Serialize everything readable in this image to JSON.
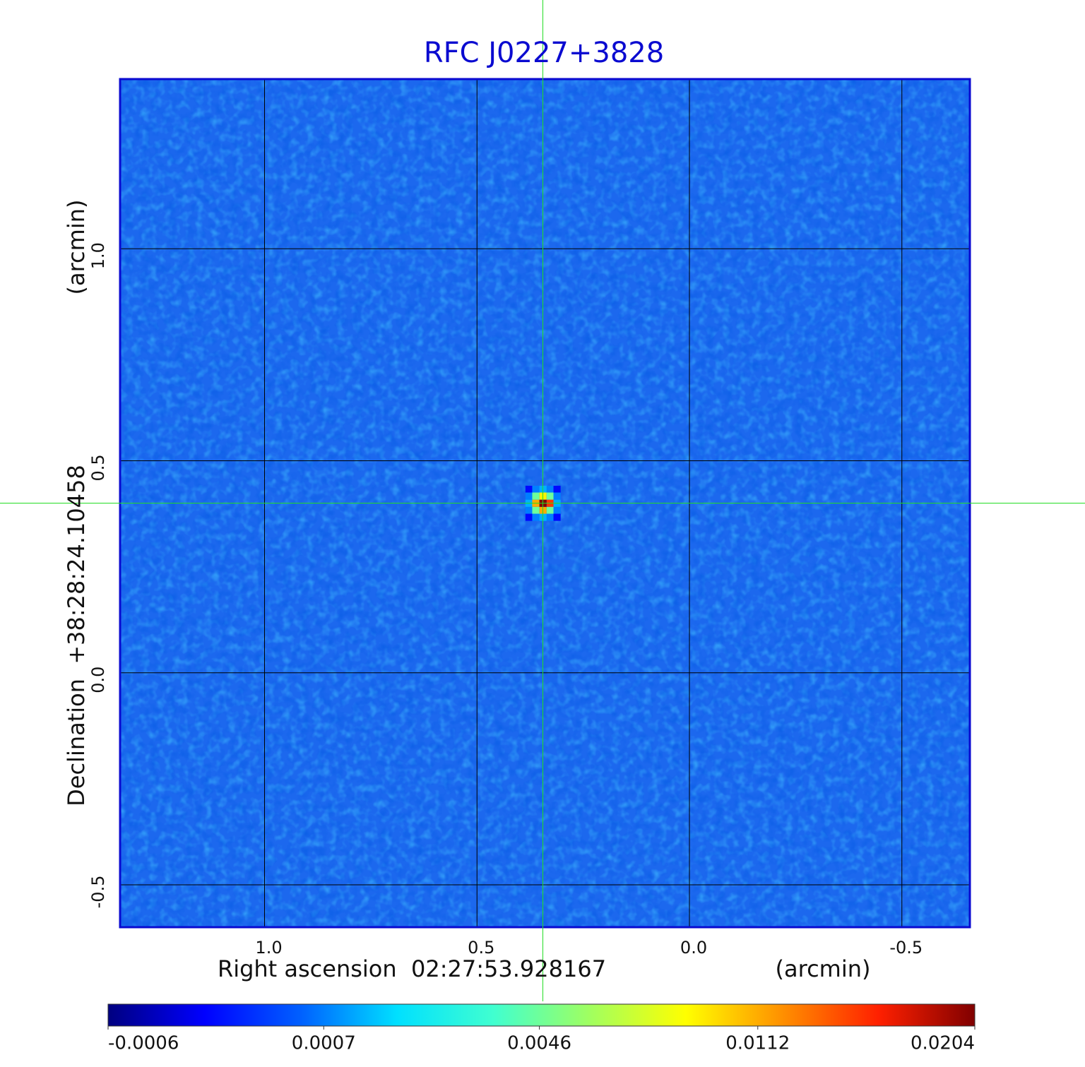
{
  "chart_data": {
    "type": "image",
    "title": "RFC J0227+3828",
    "x_label": "Right ascension  02:27:53.928167",
    "x_unit": "(arcmin)",
    "y_label": "Declination  +38:28:24.10458",
    "y_unit": "(arcmin)",
    "xlim": [
      1.34,
      -0.66
    ],
    "ylim": [
      -0.6,
      1.4
    ],
    "xticks": [
      {
        "value": 1,
        "label": "1.0"
      },
      0.5,
      {
        "value": 0,
        "label": "0.0"
      },
      -0.5
    ],
    "yticks": [
      -0.5,
      {
        "value": 0,
        "label": "0.0"
      },
      0.5,
      {
        "value": 1,
        "label": "1.0"
      }
    ],
    "grid": true,
    "crosshair": {
      "x": 0.345,
      "y": 0.4,
      "color": "#22dd22"
    },
    "source": {
      "x": [
        0.378,
        0.362,
        0.345,
        0.328,
        0.312
      ],
      "y": [
        0.433,
        0.417,
        0.4,
        0.383,
        0.367
      ],
      "values": [
        [
          -0.0003,
          0.0007,
          0.0012,
          0.0007,
          -0.0003
        ],
        [
          0.0007,
          0.0046,
          0.009,
          0.0046,
          0.0007
        ],
        [
          0.0012,
          0.0112,
          0.0204,
          0.015,
          0.0012
        ],
        [
          0.0007,
          0.0046,
          0.0112,
          0.0046,
          0.0007
        ],
        [
          -0.0003,
          0.0007,
          0.0012,
          0.0007,
          -0.0003
        ]
      ]
    },
    "colorbar": {
      "scale": "sqrt",
      "clim": [
        -0.0006,
        0.0204
      ],
      "ticks": [
        -0.0006,
        0.0007,
        0.0046,
        0.0112,
        0.0204
      ],
      "colormap": [
        "#000080",
        "#0000ff",
        "#0060ff",
        "#00e0ff",
        "#40ffd0",
        "#a0ff60",
        "#ffff00",
        "#ff9000",
        "#ff2000",
        "#800000"
      ]
    }
  }
}
